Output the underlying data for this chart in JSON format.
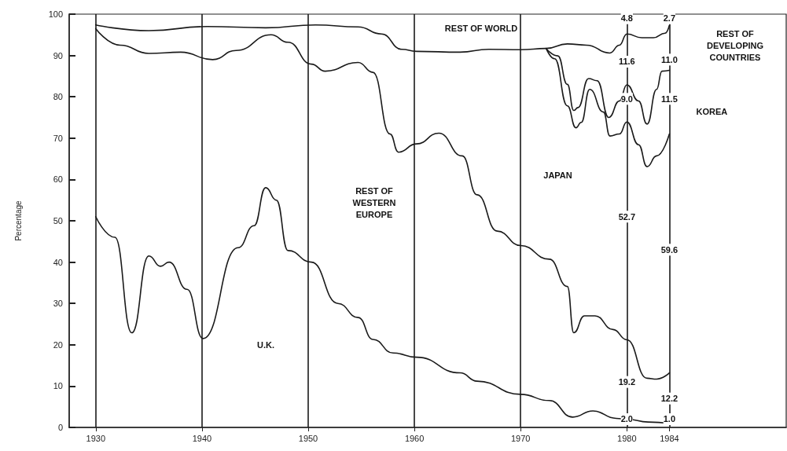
{
  "chart_data": {
    "type": "line",
    "ylabel": "Percentage",
    "xlim": [
      1927.5,
      1995
    ],
    "xticks": [
      1930,
      1940,
      1950,
      1960,
      1970,
      1980,
      1984
    ],
    "ylim": [
      0,
      100
    ],
    "yticks": [
      0,
      10,
      20,
      30,
      40,
      50,
      60,
      70,
      80,
      90,
      100
    ],
    "grid": "x",
    "marker": "none",
    "line_style": "solid",
    "series": [
      {
        "color": "#1a1a1a",
        "x": [
          1930,
          1931.8,
          1933.4,
          1935,
          1936.1,
          1936.9,
          1938.6,
          1940.1,
          1943.4,
          1944.9,
          1946,
          1947,
          1948.1,
          1950.3,
          1952.8,
          1954.7,
          1956.1,
          1958,
          1960.2,
          1964.3,
          1965.9,
          1970,
          1972.7,
          1974.9,
          1976.8,
          1979,
          1980,
          1982,
          1984
        ],
        "values": [
          51,
          46,
          22.9,
          41.5,
          39,
          40,
          33.4,
          21.5,
          43.5,
          48.8,
          58,
          55,
          42.8,
          40,
          30,
          26.6,
          21.3,
          18,
          17,
          13.2,
          11.2,
          8,
          6.5,
          2.5,
          4,
          2.2,
          2,
          1.3,
          1
        ]
      },
      {
        "color": "#1a1a1a",
        "x": [
          1930,
          1932.3,
          1935,
          1938,
          1941,
          1943.2,
          1946.5,
          1948.1,
          1950.3,
          1951.6,
          1954.7,
          1956.1,
          1957.7,
          1958.5,
          1960.2,
          1962.3,
          1964.5,
          1965.9,
          1967.8,
          1970,
          1972.7,
          1974.4,
          1975,
          1976,
          1977,
          1978.7,
          1980,
          1981.9,
          1982.8,
          1984
        ],
        "values": [
          96.5,
          92.5,
          90.5,
          90.8,
          89,
          91.2,
          95,
          93.2,
          87.9,
          86.2,
          88.3,
          85.9,
          71,
          66.6,
          68.6,
          71.2,
          65.7,
          56.3,
          47.5,
          44,
          40.7,
          34.1,
          22.9,
          27,
          27,
          23.7,
          21.2,
          11.9,
          11.7,
          13.2
        ]
      },
      {
        "color": "#1a1a1a",
        "x": [
          1972.4,
          1973.2,
          1974.4,
          1975.2,
          1975.7,
          1976.5,
          1977.8,
          1978.4,
          1979.3,
          1980,
          1981.1,
          1981.9,
          1982.8,
          1984
        ],
        "values": [
          91.7,
          89.2,
          77.8,
          72.5,
          73.8,
          81.8,
          76.3,
          70.5,
          71,
          73.9,
          68.4,
          63.1,
          65.7,
          71
        ]
      },
      {
        "color": "#1a1a1a",
        "x": [
          1972.4,
          1973.5,
          1974.4,
          1975,
          1975.4,
          1976.4,
          1977.2,
          1978.3,
          1979.3,
          1980,
          1981.1,
          1981.9,
          1982.8,
          1983.3,
          1984
        ],
        "values": [
          91.7,
          89.9,
          83,
          76.7,
          77.4,
          84.4,
          83.9,
          75,
          79,
          82.9,
          79,
          73.4,
          81.8,
          86.2,
          86.4
        ]
      },
      {
        "color": "#1a1a1a",
        "x": [
          1930,
          1935,
          1940.5,
          1946,
          1950.7,
          1954.7,
          1956.9,
          1958.8,
          1960.2,
          1964.3,
          1967,
          1970,
          1972.4,
          1974.4,
          1976.2,
          1978.4,
          1979.3,
          1980,
          1981.4,
          1982.5,
          1983.6,
          1984
        ],
        "values": [
          97.4,
          96,
          97,
          96.7,
          97.4,
          96.9,
          95.2,
          91.5,
          91,
          90.8,
          91.5,
          91.4,
          91.7,
          92.8,
          92.5,
          90.6,
          92.5,
          95.2,
          94.3,
          94.3,
          95.4,
          97.3
        ]
      }
    ],
    "annotations": [
      "REST OF WORLD",
      "REST OF\nDEVELOPING\nCOUNTRIES",
      {
        "text": "KOREA",
        "x": 1988,
        "y": 76.5
      },
      {
        "text": "JAPAN",
        "x": 1973.5,
        "y": 61
      },
      "REST OF\nWESTERN\nEUROPE",
      {
        "text": "U.K.",
        "x": 1946,
        "y": 20
      },
      {
        "text": "4.8",
        "x": 1980,
        "y": 99
      },
      {
        "text": "2.7",
        "x": 1984,
        "y": 99
      },
      {
        "text": "11.6",
        "x": 1980,
        "y": 88.5
      },
      {
        "text": "11.0",
        "x": 1984,
        "y": 89
      },
      {
        "text": "9.0",
        "x": 1980,
        "y": 79.5
      },
      {
        "text": "11.5",
        "x": 1984,
        "y": 79.5
      },
      {
        "text": "52.7",
        "x": 1980,
        "y": 51
      },
      {
        "text": "59.6",
        "x": 1984,
        "y": 43
      },
      {
        "text": "19.2",
        "x": 1980,
        "y": 11
      },
      {
        "text": "12.2",
        "x": 1984,
        "y": 7
      },
      {
        "text": "2.0",
        "x": 1980,
        "y": 2
      },
      {
        "text": "1.0",
        "x": 1984,
        "y": 2
      }
    ]
  }
}
